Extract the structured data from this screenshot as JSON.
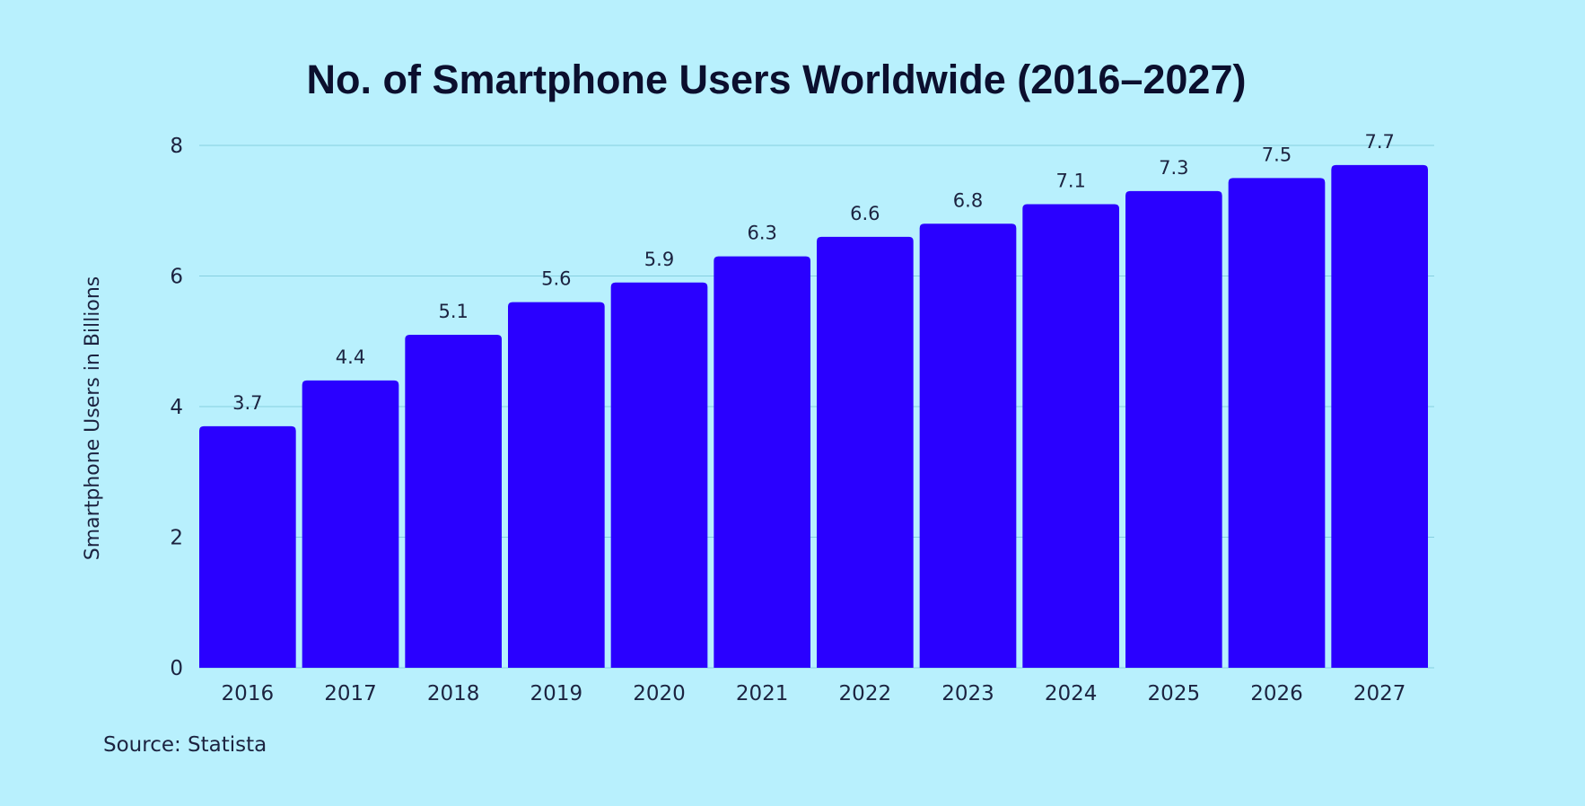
{
  "colors": {
    "background": "#b8f0fd",
    "bar": "#2a00ff",
    "grid": "#86cfe0",
    "text": "#1c2340",
    "title": "#0b0f2e"
  },
  "chart_data": {
    "type": "bar",
    "title": "No. of Smartphone Users Worldwide (2016–2027)",
    "xlabel": "",
    "ylabel": "Smartphone Users in Billions",
    "categories": [
      "2016",
      "2017",
      "2018",
      "2019",
      "2020",
      "2021",
      "2022",
      "2023",
      "2024",
      "2025",
      "2026",
      "2027"
    ],
    "values": [
      3.7,
      4.4,
      5.1,
      5.6,
      5.9,
      6.3,
      6.6,
      6.8,
      7.1,
      7.3,
      7.5,
      7.7
    ],
    "ylim": [
      0,
      8
    ],
    "yticks": [
      0,
      2,
      4,
      6,
      8
    ],
    "grid": true,
    "legend": "none",
    "source": "Source: Statista"
  }
}
